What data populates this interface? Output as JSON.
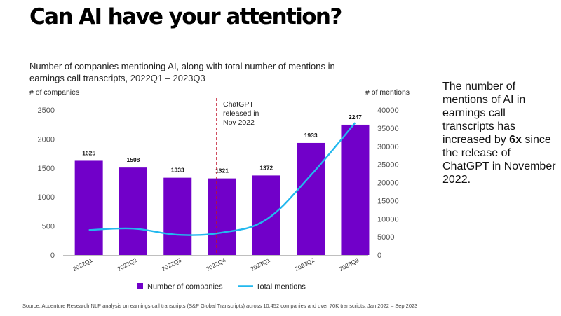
{
  "page": {
    "title": "Can AI have your attention?",
    "subtitle_main": "Number of companies mentioning AI, along with total number of mentions in earnings call transcripts,",
    "subtitle_range": "2022Q1 – 2023Q3",
    "callout_pre": "The number of mentions of AI in earnings call transcripts has increased by ",
    "callout_bold": "6x",
    "callout_post": " since the release of ChatGPT in November 2022.",
    "source": "Source: Accenture Research NLP analysis on earnings call transcripts (S&P Global Transcripts) across 10,452 companies and over 70K transcripts; Jan 2022 – Sep 2023"
  },
  "colors": {
    "bar": "#7100c9",
    "line": "#22b8ee",
    "annotation_line": "#c0142c"
  },
  "chart_data": {
    "type": "bar",
    "categories": [
      "2022Q1",
      "2022Q2",
      "2022Q3",
      "2022Q4",
      "2023Q1",
      "2023Q2",
      "2023Q3"
    ],
    "series": [
      {
        "name": "Number of companies",
        "type": "bar",
        "axis": "left",
        "values": [
          1625,
          1508,
          1333,
          1321,
          1372,
          1933,
          2247
        ],
        "labels": [
          "1625",
          "1508",
          "1333",
          "1321",
          "1372",
          "1933",
          "2247"
        ]
      },
      {
        "name": "Total mentions",
        "type": "line",
        "axis": "right",
        "values": [
          6900,
          7300,
          5600,
          6200,
          9800,
          22000,
          36500
        ]
      }
    ],
    "y_left": {
      "label": "# of companies",
      "range": [
        0,
        2500
      ],
      "ticks": [
        "0",
        "500",
        "1000",
        "1500",
        "2000",
        "2500"
      ]
    },
    "y_right": {
      "label": "# of mentions",
      "range": [
        0,
        40000
      ],
      "ticks": [
        "0",
        "5000",
        "10000",
        "15000",
        "20000",
        "25000",
        "30000",
        "35000",
        "40000"
      ]
    },
    "annotation": {
      "lines": [
        "ChatGPT",
        "released in",
        "Nov 2022"
      ],
      "position": "between 2022Q3 and 2022Q4 (dashed vertical line)"
    },
    "legend": {
      "position": "bottom",
      "entries": [
        "Number of companies",
        "Total mentions"
      ]
    },
    "grid": false
  }
}
